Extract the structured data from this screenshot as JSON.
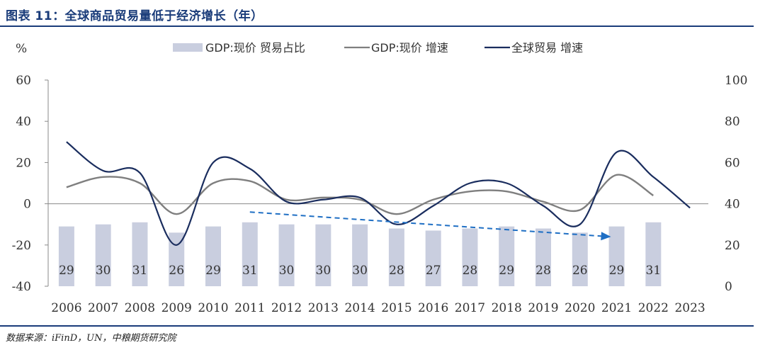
{
  "header": {
    "title": "图表 11：全球商品贸易量低于经济增长（年）"
  },
  "source": "数据来源：iFinD，UN，中粮期货研究院",
  "chart_data": {
    "type": "bar+line",
    "unit_label": "%",
    "categories": [
      "2006",
      "2007",
      "2008",
      "2009",
      "2010",
      "2011",
      "2012",
      "2013",
      "2014",
      "2015",
      "2016",
      "2017",
      "2018",
      "2019",
      "2020",
      "2021",
      "2022",
      "2023"
    ],
    "left_axis": {
      "range": [
        -40,
        60
      ],
      "ticks": [
        60,
        40,
        20,
        0,
        -20,
        -40
      ]
    },
    "right_axis": {
      "range": [
        0,
        100
      ],
      "ticks": [
        100,
        80,
        60,
        40,
        20,
        0
      ]
    },
    "series": [
      {
        "name": "GDP:现价 贸易占比",
        "kind": "bar",
        "axis": "right",
        "color": "#c9cedf",
        "values": [
          29,
          30,
          31,
          26,
          29,
          31,
          30,
          30,
          30,
          28,
          27,
          28,
          29,
          28,
          26,
          29,
          31,
          null
        ]
      },
      {
        "name": "GDP:现价 增速",
        "kind": "line",
        "axis": "left",
        "color": "#7f7f7f",
        "values": [
          8,
          13,
          10,
          -5,
          10,
          11,
          2,
          3,
          2,
          -5,
          2,
          6,
          6,
          1,
          -3,
          14,
          4,
          null
        ]
      },
      {
        "name": "全球贸易 增速",
        "kind": "line",
        "axis": "left",
        "color": "#1a2d5e",
        "values": [
          30,
          16,
          15,
          -20,
          20,
          17,
          1,
          2,
          3,
          -10,
          -1,
          10,
          10,
          -1,
          -10,
          25,
          13,
          -2
        ]
      }
    ],
    "trend_arrow": {
      "color": "#1f6fc4",
      "from": {
        "x": "2011",
        "y": 36
      },
      "to": {
        "x": "2021",
        "y": 24
      }
    },
    "legend_position": "top",
    "grid": false
  }
}
